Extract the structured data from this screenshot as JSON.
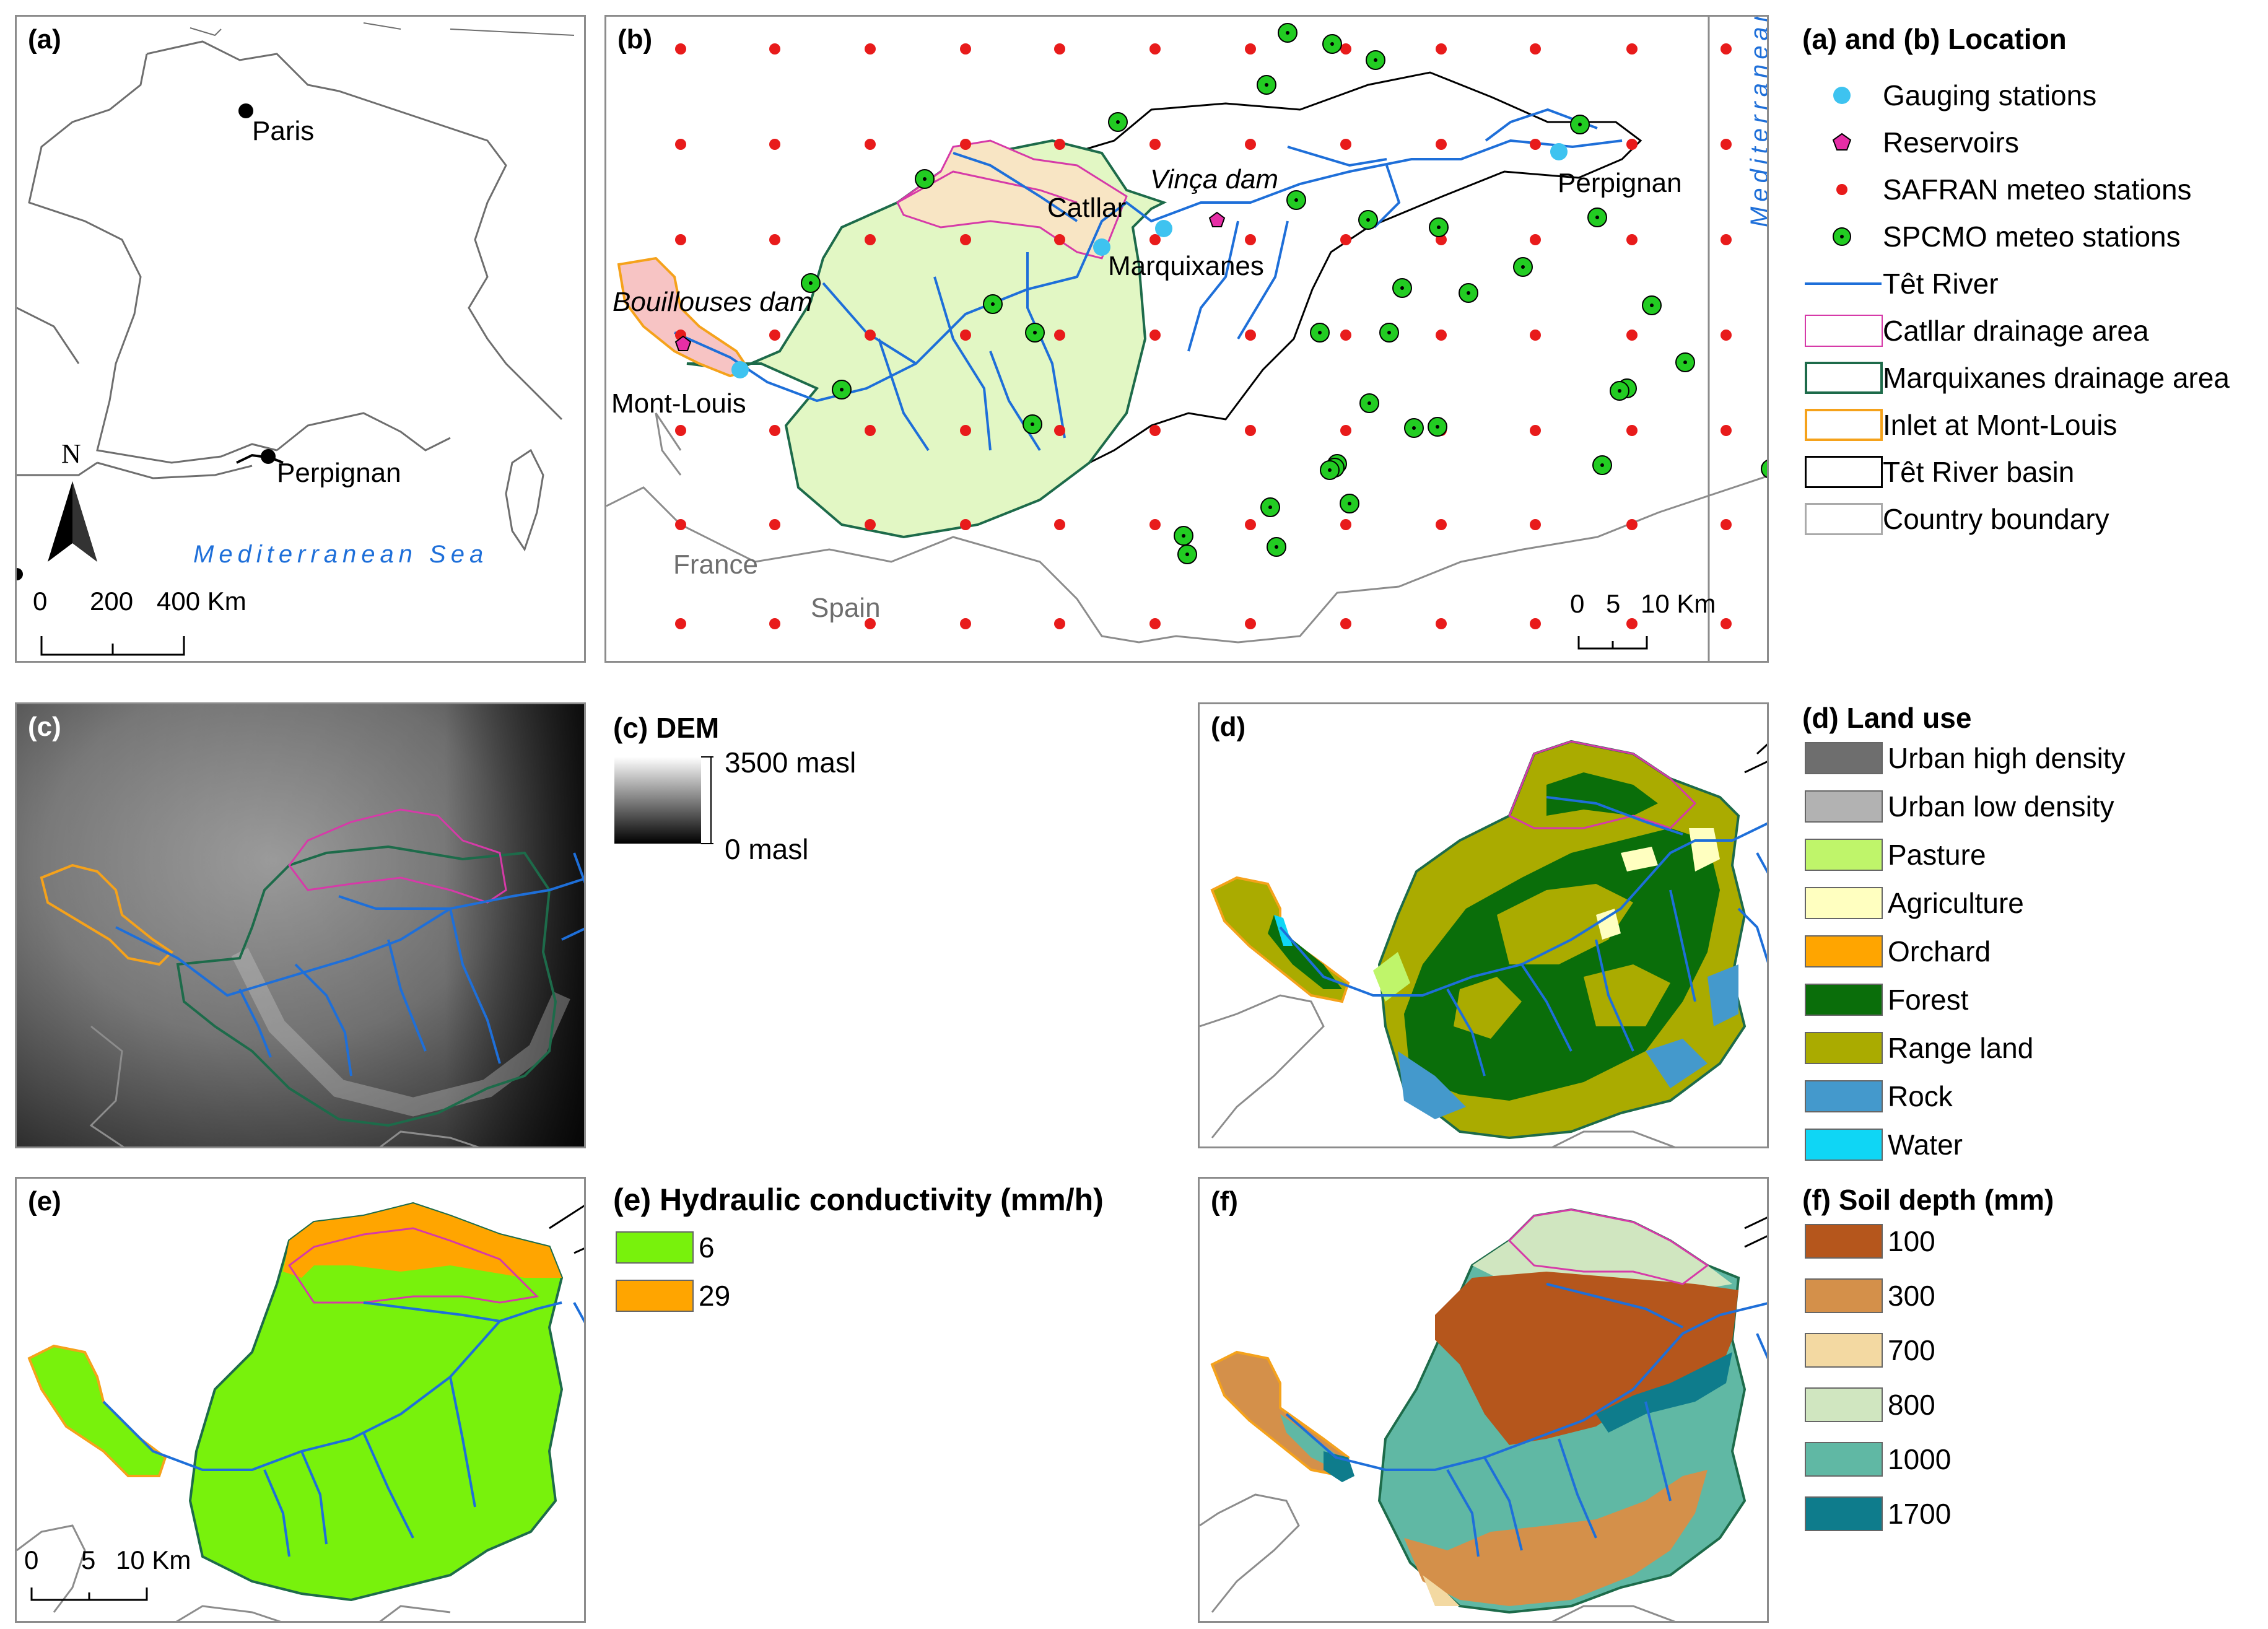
{
  "panel_a": {
    "label": "(a)",
    "places": [
      "Paris",
      "Perpignan"
    ],
    "north": "N",
    "sea": "Mediterranean Sea",
    "scale": {
      "ticks": [
        "0",
        "200",
        "400 Km"
      ]
    }
  },
  "panel_b": {
    "label": "(b)",
    "places": {
      "bouillouses": "Bouillouses dam",
      "mont_louis": "Mont-Louis",
      "catllar": "Catllar",
      "vinca": "Vinça dam",
      "marquixanes": "Marquixanes",
      "perpignan": "Perpignan"
    },
    "countries": [
      "France",
      "Spain"
    ],
    "sea": "Mediterranean Sea",
    "scale": {
      "ticks": [
        "0",
        "5",
        "10 Km"
      ]
    }
  },
  "legend_ab": {
    "title": "(a) and (b) Location",
    "items": [
      {
        "label": "Gauging stations",
        "color": "#3ec3f0"
      },
      {
        "label": "Reservoirs",
        "color": "#e62ea6"
      },
      {
        "label": "SAFRAN meteo stations",
        "color": "#e81b1b"
      },
      {
        "label": "SPCMO meteo stations",
        "color": "#22cc22"
      },
      {
        "label": "Têt River",
        "color": "#1e6fd9"
      },
      {
        "label": "Catllar drainage area",
        "color": "#d63aa8"
      },
      {
        "label": "Marquixanes drainage area",
        "color": "#1d6b4a"
      },
      {
        "label": "Inlet at Mont-Louis",
        "color": "#f5a21b"
      },
      {
        "label": "Têt River basin",
        "color": "#000000"
      },
      {
        "label": "Country boundary",
        "color": "#aaaaaa"
      }
    ]
  },
  "panel_c": {
    "label": "(c)",
    "legend_title": "(c) DEM",
    "max_label": "3500 masl",
    "min_label": "0 masl"
  },
  "panel_d": {
    "label": "(d)",
    "legend_title": "(d) Land use",
    "classes": [
      {
        "label": "Urban high density",
        "color": "#6e6e6e"
      },
      {
        "label": "Urban low density",
        "color": "#b2b2b2"
      },
      {
        "label": "Pasture",
        "color": "#bff56a"
      },
      {
        "label": "Agriculture",
        "color": "#ffffc0"
      },
      {
        "label": "Orchard",
        "color": "#ffa500"
      },
      {
        "label": "Forest",
        "color": "#0a6e0a"
      },
      {
        "label": "Range land",
        "color": "#aaab00"
      },
      {
        "label": "Rock",
        "color": "#4499cc"
      },
      {
        "label": "Water",
        "color": "#0fd6f5"
      }
    ]
  },
  "panel_e": {
    "label": "(e)",
    "legend_title": "(e) Hydraulic conductivity (mm/h)",
    "classes": [
      {
        "label": "6",
        "color": "#78f20c"
      },
      {
        "label": "29",
        "color": "#ffa500"
      }
    ],
    "scale": {
      "ticks": [
        "0",
        "5",
        "10 Km"
      ]
    }
  },
  "panel_f": {
    "label": "(f)",
    "legend_title": "(f) Soil depth (mm)",
    "classes": [
      {
        "label": "100",
        "color": "#b5561c"
      },
      {
        "label": "300",
        "color": "#d4904a"
      },
      {
        "label": "700",
        "color": "#f3d9a2"
      },
      {
        "label": "800",
        "color": "#d0e6c0"
      },
      {
        "label": "1000",
        "color": "#60b8a4"
      },
      {
        "label": "1700",
        "color": "#0e7c8c"
      }
    ]
  }
}
